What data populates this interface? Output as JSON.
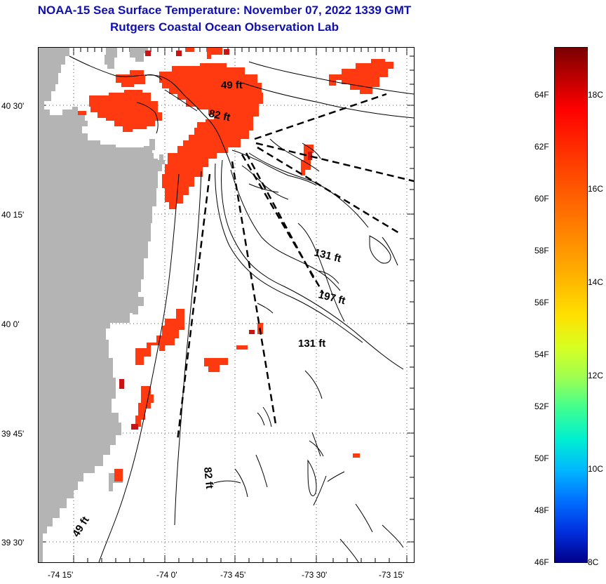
{
  "header": {
    "title": "NOAA-15 Sea Surface Temperature:  November 07, 2022 1339 GMT",
    "subtitle": "Rutgers Coastal Ocean Observation Lab"
  },
  "map": {
    "lat_labels": [
      "40 30'",
      "40 15'",
      "40 0'",
      "39 45'",
      "39 30'"
    ],
    "lon_labels": [
      "-74 15'",
      "-74 0'",
      "-73 45'",
      "-73 30'",
      "-73 15'"
    ],
    "depth_labels": [
      "49 ft",
      "82 ft",
      "131 ft",
      "197 ft",
      "131 ft",
      "82 ft",
      "49 ft"
    ],
    "land_color": "#b4b4b4",
    "sst_color": "#ff3a10"
  },
  "colorbar": {
    "fahrenheit_labels": [
      "64F",
      "62F",
      "60F",
      "58F",
      "56F",
      "54F",
      "52F",
      "50F",
      "48F",
      "46F"
    ],
    "celsius_labels": [
      "18C",
      "16C",
      "14C",
      "12C",
      "10C",
      "8C"
    ]
  }
}
